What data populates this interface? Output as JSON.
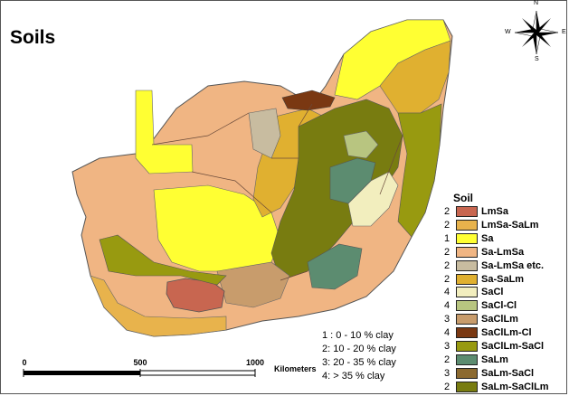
{
  "title": "Soils",
  "legend": {
    "title": "Soil",
    "items": [
      {
        "num": "2",
        "label": "LmSa",
        "color": "#c86650"
      },
      {
        "num": "2",
        "label": "LmSa-SaLm",
        "color": "#e8b34c"
      },
      {
        "num": "1",
        "label": "Sa",
        "color": "#ffff33"
      },
      {
        "num": "2",
        "label": "Sa-LmSa",
        "color": "#f0b583"
      },
      {
        "num": "2",
        "label": "Sa-LmSa etc.",
        "color": "#c8bca0"
      },
      {
        "num": "2",
        "label": "Sa-SaLm",
        "color": "#e0b030"
      },
      {
        "num": "4",
        "label": "SaCl",
        "color": "#f2eebe"
      },
      {
        "num": "4",
        "label": "SaCl-Cl",
        "color": "#b8c580"
      },
      {
        "num": "3",
        "label": "SaClLm",
        "color": "#c89c6c"
      },
      {
        "num": "4",
        "label": "SaClLm-Cl",
        "color": "#7a3812"
      },
      {
        "num": "3",
        "label": "SaClLm-SaCl",
        "color": "#989a10"
      },
      {
        "num": "2",
        "label": "SaLm",
        "color": "#5c8c70"
      },
      {
        "num": "3",
        "label": "SaLm-SaCl",
        "color": "#8c6a30"
      },
      {
        "num": "2",
        "label": "SaLm-SaClLm",
        "color": "#787c10"
      }
    ]
  },
  "clay_key": [
    "1 :  0 - 10 % clay",
    "2:  10 - 20 % clay",
    "3:  20 - 35 % clay",
    "4:   > 35 % clay"
  ],
  "scale": {
    "ticks": [
      "0",
      "500",
      "1000"
    ],
    "unit": "Kilometers"
  },
  "compass": {
    "n": "N",
    "s": "S",
    "e": "E",
    "w": "W"
  }
}
